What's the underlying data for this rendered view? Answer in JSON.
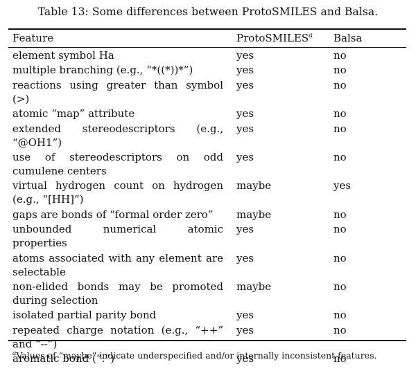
{
  "caption": "Table 13: Some differences between ProtoSMILES and Balsa.",
  "table": {
    "headers": {
      "feature": "Feature",
      "protosmiles": "ProtoSMILES",
      "protosmiles_footnote_mark": "a",
      "balsa": "Balsa"
    },
    "rows": [
      {
        "feature": "element symbol Ha",
        "protosmiles": "yes",
        "balsa": "no"
      },
      {
        "feature": "multiple branching (e.g., “*((*))*”)",
        "protosmiles": "yes",
        "balsa": "no"
      },
      {
        "feature": "reactions using greater than symbol (>)",
        "protosmiles": "yes",
        "balsa": "no"
      },
      {
        "feature": "atomic “map” attribute",
        "protosmiles": "yes",
        "balsa": "no"
      },
      {
        "feature": "extended stereodescriptors (e.g., “@OH1”)",
        "protosmiles": "yes",
        "balsa": "no"
      },
      {
        "feature": "use of stereodescriptors on odd cumulene centers",
        "protosmiles": "yes",
        "balsa": "no"
      },
      {
        "feature": "virtual hydrogen count on hydrogen (e.g., “[HH]”)",
        "protosmiles": "maybe",
        "balsa": "yes"
      },
      {
        "feature": "gaps are bonds of “formal order zero”",
        "protosmiles": "maybe",
        "balsa": "no"
      },
      {
        "feature": "unbounded numerical atomic properties",
        "protosmiles": "yes",
        "balsa": "no"
      },
      {
        "feature": "atoms associated with any element are selectable",
        "protosmiles": "yes",
        "balsa": "no"
      },
      {
        "feature": "non-elided bonds may be promoted during selection",
        "protosmiles": "maybe",
        "balsa": "no"
      },
      {
        "feature": "isolated partial parity bond",
        "protosmiles": "yes",
        "balsa": "no"
      },
      {
        "feature": "repeated charge notation (e.g., “++” and “--”)",
        "protosmiles": "yes",
        "balsa": "no"
      },
      {
        "feature": "aromatic bond (“:”)",
        "protosmiles": "yes",
        "balsa": "no"
      }
    ]
  },
  "footnote": {
    "mark": "a",
    "text": "Values of “maybe” indicate underspecified and/or internally inconsistent features."
  }
}
